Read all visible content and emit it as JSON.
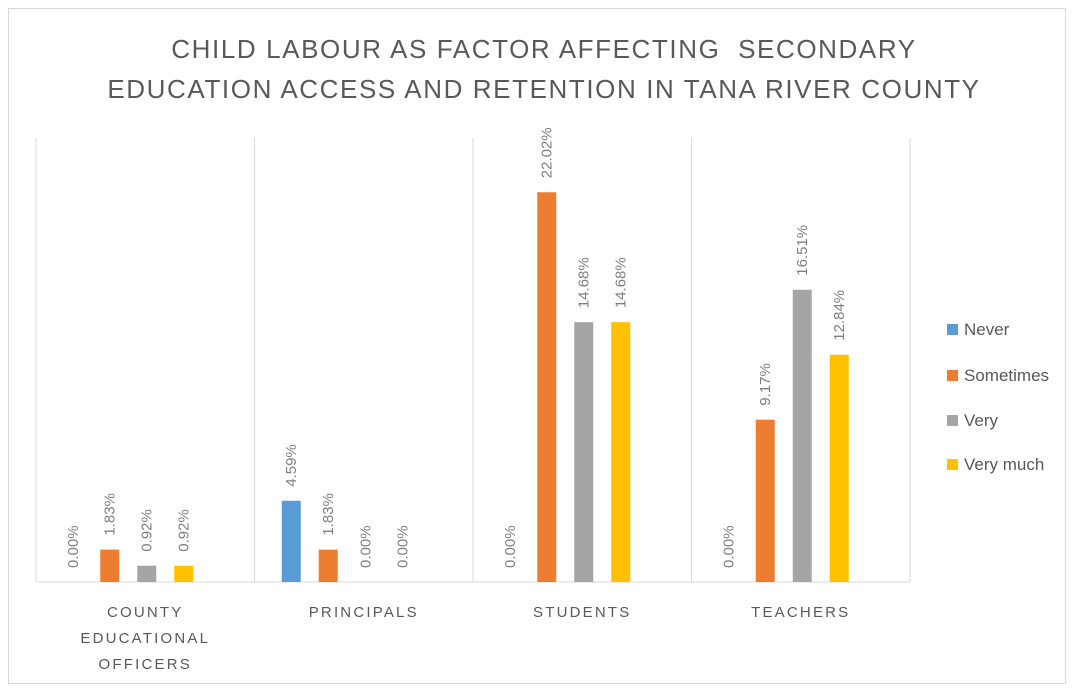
{
  "chart_data": {
    "type": "bar",
    "title_lines": [
      "CHILD LABOUR AS FACTOR AFFECTING  SECONDARY",
      "EDUCATION ACCESS AND RETENTION IN TANA RIVER COUNTY"
    ],
    "categories": [
      [
        "COUNTY",
        "EDUCATIONAL",
        "OFFICERS"
      ],
      [
        "PRINCIPALS"
      ],
      [
        "STUDENTS"
      ],
      [
        "TEACHERS"
      ]
    ],
    "series": [
      {
        "name": "Never",
        "color": "#5b9bd5",
        "values": [
          0.0,
          4.59,
          0.0,
          0.0
        ],
        "labels": [
          "0.00%",
          "4.59%",
          "0.00%",
          "0.00%"
        ]
      },
      {
        "name": "Sometimes",
        "color": "#ed7d31",
        "values": [
          1.83,
          1.83,
          22.02,
          9.17
        ],
        "labels": [
          "1.83%",
          "1.83%",
          "22.02%",
          "9.17%"
        ]
      },
      {
        "name": "Very",
        "color": "#a5a5a5",
        "values": [
          0.92,
          0.0,
          14.68,
          16.51
        ],
        "labels": [
          "0.92%",
          "0.00%",
          "14.68%",
          "16.51%"
        ]
      },
      {
        "name": "Very much",
        "color": "#ffc000",
        "values": [
          0.92,
          0.0,
          14.68,
          12.84
        ],
        "labels": [
          "0.92%",
          "0.00%",
          "14.68%",
          "12.84%"
        ]
      }
    ],
    "ylim": [
      0,
      25
    ],
    "grid": false,
    "legend_position": "right",
    "data_labels": true,
    "gridline_style": "vertical category separators"
  }
}
